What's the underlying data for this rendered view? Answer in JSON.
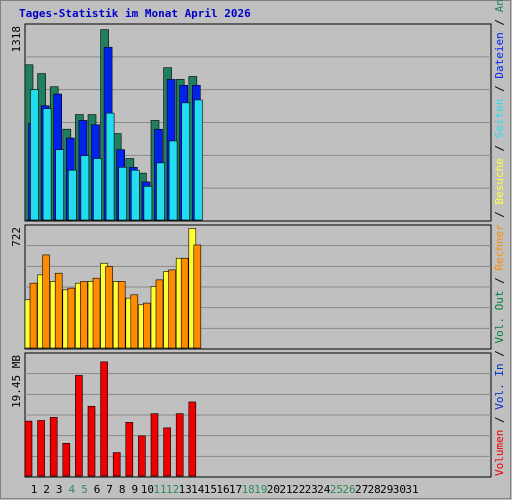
{
  "chart_data": {
    "type": "bar",
    "title": "Tages-Statistik im Monat April 2026",
    "categories": [
      "1",
      "2",
      "3",
      "4",
      "5",
      "6",
      "7",
      "8",
      "9",
      "10",
      "11",
      "12",
      "13",
      "14",
      "15",
      "16",
      "17",
      "18",
      "19",
      "20",
      "21",
      "22",
      "23",
      "24",
      "25",
      "26",
      "27",
      "28",
      "29",
      "30",
      "31"
    ],
    "weekend_days": [
      "4",
      "5",
      "11",
      "12",
      "18",
      "19",
      "25",
      "26"
    ],
    "grid": true,
    "colors": {
      "title": "#0000cc",
      "background": "#c0c0c0",
      "weekend_label": "#2e8b57",
      "weekday_label": "#000000",
      "anfragen": "#1f7f5f",
      "dateien": "#0022ee",
      "seiten": "#22ddf0",
      "besuche": "#ffff33",
      "rechner": "#ff8c00",
      "volumen": "#ee0000",
      "vol_in": "#0033cc",
      "vol_out": "#008040"
    },
    "panels": [
      {
        "id": "hits",
        "max_label": "1318",
        "ymax": 1318,
        "series": [
          {
            "name": "Anfragen",
            "values": [
              1060,
              1000,
              910,
              620,
              720,
              720,
              1300,
              590,
              420,
              320,
              680,
              1040,
              960,
              980,
              0,
              0,
              0,
              0,
              0,
              0,
              0,
              0,
              0,
              0,
              0,
              0,
              0,
              0,
              0,
              0,
              0
            ]
          },
          {
            "name": "Dateien",
            "values": [
              660,
              780,
              860,
              560,
              680,
              650,
              1180,
              480,
              360,
              260,
              620,
              960,
              920,
              920,
              0,
              0,
              0,
              0,
              0,
              0,
              0,
              0,
              0,
              0,
              0,
              0,
              0,
              0,
              0,
              0,
              0
            ]
          },
          {
            "name": "Seiten",
            "values": [
              890,
              760,
              480,
              340,
              440,
              420,
              730,
              360,
              340,
              230,
              390,
              540,
              800,
              820,
              0,
              0,
              0,
              0,
              0,
              0,
              0,
              0,
              0,
              0,
              0,
              0,
              0,
              0,
              0,
              0,
              0
            ]
          }
        ]
      },
      {
        "id": "visits",
        "max_label": "722",
        "ymax": 722,
        "series": [
          {
            "name": "Besuche",
            "values": [
              290,
              440,
              400,
              350,
              390,
              400,
              510,
              400,
              300,
              260,
              370,
              460,
              540,
              720,
              0,
              0,
              0,
              0,
              0,
              0,
              0,
              0,
              0,
              0,
              0,
              0,
              0,
              0,
              0,
              0,
              0
            ]
          },
          {
            "name": "Rechner",
            "values": [
              390,
              560,
              450,
              360,
              400,
              420,
              490,
              400,
              320,
              270,
              410,
              470,
              540,
              620,
              0,
              0,
              0,
              0,
              0,
              0,
              0,
              0,
              0,
              0,
              0,
              0,
              0,
              0,
              0,
              0,
              0
            ]
          }
        ]
      },
      {
        "id": "volume",
        "max_label": "19.45 MB",
        "ymax": 19.45,
        "series": [
          {
            "name": "Volumen",
            "values": [
              8.9,
              9.0,
              9.5,
              5.3,
              16.3,
              11.3,
              18.5,
              3.8,
              8.7,
              6.5,
              10.1,
              7.8,
              10.1,
              12.0,
              0,
              0,
              0,
              0,
              0,
              0,
              0,
              0,
              0,
              0,
              0,
              0,
              0,
              0,
              0,
              0,
              0
            ]
          }
        ]
      }
    ],
    "legend": {
      "top": [
        "Anfragen",
        "/",
        "Dateien",
        "/",
        "Seiten",
        "/",
        "Besuche",
        "/",
        "Rechner",
        "/",
        "Vol. Out",
        "/",
        "Vol. In",
        "/",
        "Volumen"
      ],
      "placement": "right-vertical"
    }
  }
}
